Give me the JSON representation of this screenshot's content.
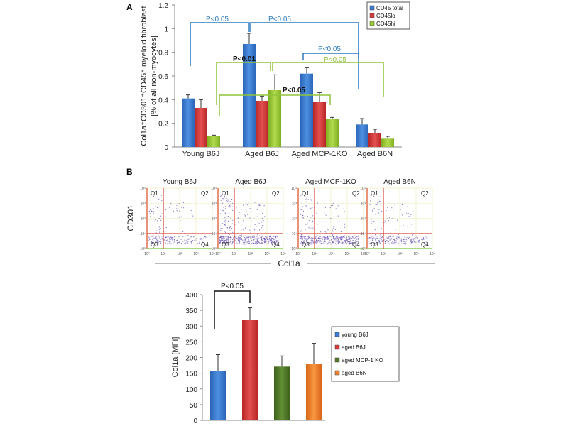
{
  "chart_data": [
    {
      "panel": "A",
      "type": "bar",
      "ylabel_line1": "Col1a⁺CD301⁺CD45⁺ myeloid fibroblast",
      "ylabel_line2": "[% of all non-myocytes]",
      "ylim": [
        0,
        1.2
      ],
      "yticks": [
        "0",
        "0.2",
        "0.4",
        "0.6",
        "0.8",
        "1",
        "1.2"
      ],
      "categories": [
        "Young B6J",
        "Aged B6J",
        "Aged MCP-1KO",
        "Aged B6N"
      ],
      "series": [
        {
          "name": "CD45 total",
          "color": "#3a7bd5",
          "values": [
            0.41,
            0.87,
            0.62,
            0.19
          ],
          "errors": [
            0.03,
            0.09,
            0.05,
            0.05
          ]
        },
        {
          "name": "CD45lo",
          "color": "#d93a3a",
          "values": [
            0.33,
            0.39,
            0.38,
            0.12
          ],
          "errors": [
            0.07,
            0.04,
            0.08,
            0.03
          ]
        },
        {
          "name": "CD45hi",
          "color": "#9acd32",
          "values": [
            0.09,
            0.48,
            0.24,
            0.07
          ],
          "errors": [
            0.01,
            0.13,
            0.01,
            0.02
          ]
        }
      ],
      "legend": "top-right",
      "annotations": [
        {
          "text": "P<0.05",
          "color": "#2e7bbf",
          "bracket": "Young B6J vs Aged B6J (CD45 total)"
        },
        {
          "text": "P<0.05",
          "color": "#2e7bbf",
          "bracket": "Aged B6J vs Aged B6N (CD45 total)"
        },
        {
          "text": "P<0.05",
          "color": "#2e7bbf",
          "bracket": "Aged MCP-1KO vs Aged B6N (CD45 total)"
        },
        {
          "text": "P<0.05",
          "color": "#8fc43a",
          "bracket": "Aged B6J vs Aged B6N (CD45hi)"
        },
        {
          "text": "P<0.01",
          "color": "#111111",
          "bracket": "Young B6J vs Aged B6J (CD45hi)"
        },
        {
          "text": "P<0.05",
          "color": "#111111",
          "bracket": "Young B6J vs Aged MCP-1KO (CD45hi)"
        }
      ]
    },
    {
      "panel": "B-flow",
      "type": "scatter",
      "panels": [
        "Young B6J",
        "Aged B6J",
        "Aged MCP-1KO",
        "Aged B6N"
      ],
      "quadrants": [
        "Q1",
        "Q2",
        "Q3",
        "Q4"
      ],
      "xlabel": "Col1a",
      "ylabel": "CD301",
      "axis_ticks": [
        "10⁰",
        "10¹",
        "10²",
        "10³",
        "10⁴"
      ]
    },
    {
      "panel": "B-bar",
      "type": "bar",
      "ylabel": "Col1a [MFI]",
      "ylim": [
        0,
        400
      ],
      "yticks": [
        "0",
        "50",
        "100",
        "150",
        "200",
        "250",
        "300",
        "350",
        "400"
      ],
      "categories": [
        "young  B6J",
        "aged B6J",
        "aged MCP-1 KO",
        "aged B6N"
      ],
      "values": [
        157,
        320,
        171,
        180
      ],
      "errors": [
        52,
        38,
        34,
        65
      ],
      "colors": [
        "#3a7bd5",
        "#d93a3a",
        "#4f7a28",
        "#f07f2a"
      ],
      "legend": "right",
      "annotation": "P<0.05"
    }
  ],
  "labels": {
    "panel_a": "A",
    "panel_b": "B"
  }
}
